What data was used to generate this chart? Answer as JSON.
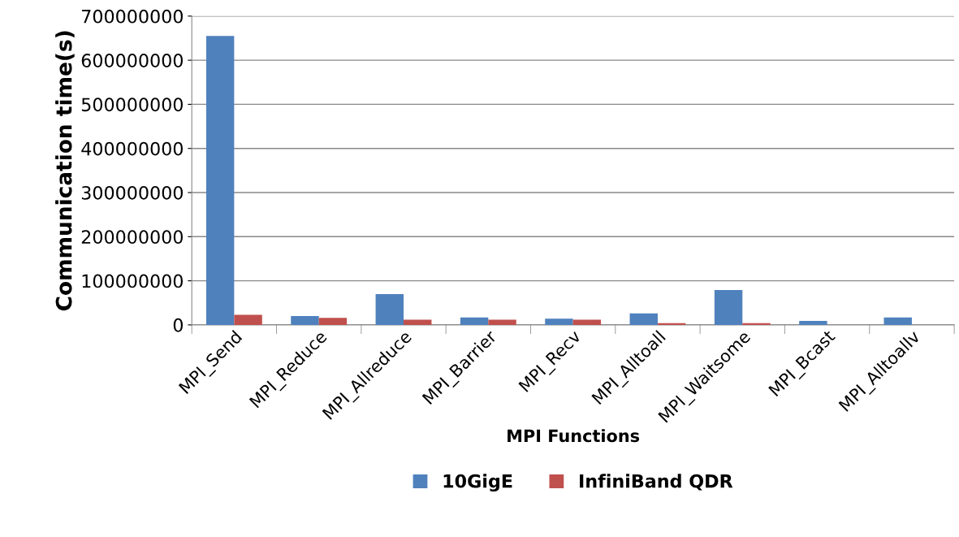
{
  "chart_data": {
    "type": "bar",
    "xlabel": "MPI Functions",
    "ylabel": "Communication time(s)",
    "categories": [
      "MPI_Send",
      "MPI_Reduce",
      "MPI_Allreduce",
      "MPI_Barrier",
      "MPI_Recv",
      "MPI_Alltoall",
      "MPI_Waitsome",
      "MPI_Bcast",
      "MPI_Alltoallv"
    ],
    "series": [
      {
        "name": "10GigE",
        "color": "#4f81bd",
        "values": [
          655000000,
          20000000,
          70000000,
          17000000,
          14000000,
          26000000,
          79000000,
          9000000,
          17000000
        ]
      },
      {
        "name": "InfiniBand QDR",
        "color": "#c0504d",
        "values": [
          23000000,
          16000000,
          12000000,
          12000000,
          12000000,
          4000000,
          4000000,
          null,
          null
        ]
      }
    ],
    "ylim": [
      0,
      700000000
    ],
    "yticks": [
      0,
      100000000,
      200000000,
      300000000,
      400000000,
      500000000,
      600000000,
      700000000
    ],
    "grid": "y",
    "legend": "bottom"
  }
}
